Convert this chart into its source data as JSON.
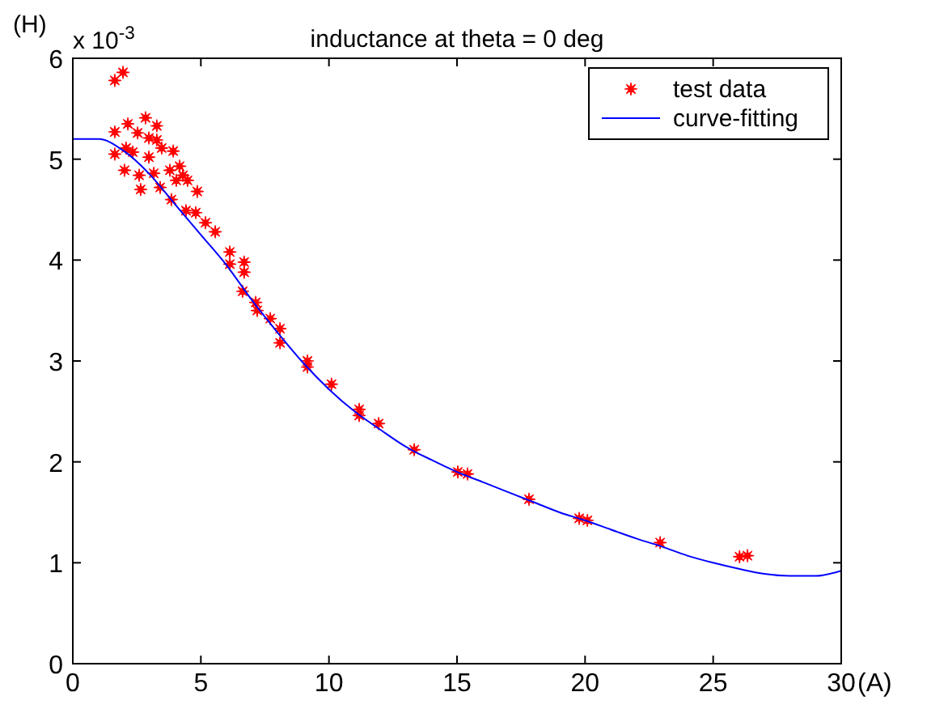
{
  "chart_data": {
    "type": "scatter",
    "title": "inductance at theta = 0 deg",
    "xlabel": "(A)",
    "ylabel": "(H)",
    "annotations": [
      "x 10$^{-3}$"
    ],
    "xlim": [
      0,
      30
    ],
    "ylim": [
      0,
      6
    ],
    "xticks": [
      0,
      5,
      10,
      15,
      20,
      25,
      30
    ],
    "yticks": [
      0,
      1,
      2,
      3,
      4,
      5,
      6
    ],
    "grid": false,
    "legend": "top right",
    "series": [
      {
        "name": "test data",
        "marker": "star",
        "color": "#ff0000",
        "x": [
          1.64,
          1.96,
          1.64,
          1.64,
          2.15,
          2.84,
          3.28,
          2.53,
          2.97,
          3.28,
          2.08,
          2.34,
          3.47,
          3.92,
          2.97,
          2.02,
          2.59,
          3.16,
          2.65,
          3.41,
          3.79,
          4.17,
          4.3,
          4.04,
          4.48,
          3.85,
          4.86,
          4.42,
          4.8,
          5.18,
          5.56,
          6.13,
          6.13,
          6.69,
          6.69,
          6.63,
          7.14,
          7.2,
          7.71,
          8.09,
          8.09,
          9.16,
          9.16,
          10.1,
          11.18,
          11.18,
          11.94,
          13.33,
          15.03,
          15.41,
          17.81,
          19.77,
          20.09,
          22.93,
          26.03,
          26.34
        ],
        "values": [
          5.78,
          5.86,
          5.27,
          5.05,
          5.35,
          5.41,
          5.33,
          5.26,
          5.21,
          5.19,
          5.11,
          5.07,
          5.11,
          5.08,
          5.02,
          4.89,
          4.84,
          4.86,
          4.7,
          4.72,
          4.89,
          4.93,
          4.84,
          4.79,
          4.79,
          4.6,
          4.68,
          4.49,
          4.47,
          4.37,
          4.28,
          4.08,
          3.96,
          3.98,
          3.88,
          3.69,
          3.58,
          3.5,
          3.42,
          3.32,
          3.18,
          3.0,
          2.94,
          2.77,
          2.52,
          2.46,
          2.38,
          2.12,
          1.9,
          1.88,
          1.63,
          1.44,
          1.42,
          1.2,
          1.06,
          1.07
        ]
      },
      {
        "name": "curve-fitting",
        "type": "line",
        "marker": "none",
        "line_style": "solid",
        "color": "#0000ff",
        "x": [
          0,
          1,
          2,
          3,
          4,
          5,
          6,
          7,
          8,
          9,
          10,
          11,
          12,
          13,
          14,
          15,
          16,
          17,
          18,
          19,
          20,
          21,
          22,
          23,
          24,
          25,
          26,
          27,
          28,
          29,
          30
        ],
        "values": [
          5.2,
          5.2,
          5.08,
          4.85,
          4.55,
          4.25,
          3.95,
          3.6,
          3.28,
          2.98,
          2.72,
          2.5,
          2.32,
          2.15,
          2.02,
          1.9,
          1.8,
          1.7,
          1.6,
          1.5,
          1.42,
          1.33,
          1.24,
          1.16,
          1.07,
          1.0,
          0.94,
          0.89,
          0.87,
          0.87,
          0.92
        ]
      }
    ]
  }
}
